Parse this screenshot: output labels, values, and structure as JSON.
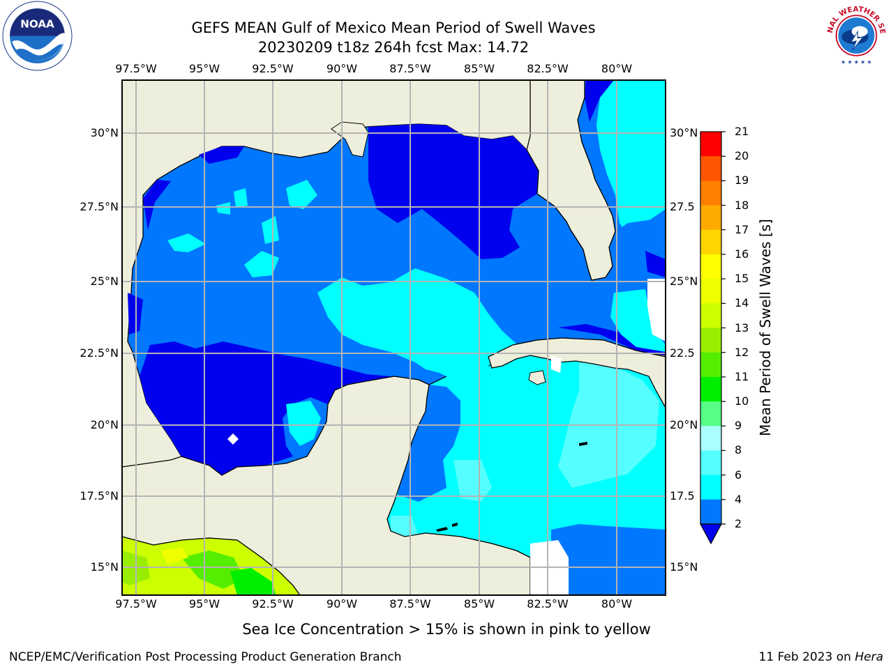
{
  "title": {
    "line1": "GEFS MEAN Gulf of Mexico Mean Period of Swell Waves",
    "line2": "20230209 t18z 264h fcst   Max: 14.72"
  },
  "logos": {
    "left": "noaa-logo",
    "right": "national-weather-service-logo",
    "left_text": "NOAA",
    "right_text": "NATIONAL WEATHER SERVICE"
  },
  "axes": {
    "lon_ticks": [
      "97.5°W",
      "95°W",
      "92.5°W",
      "90°W",
      "87.5°W",
      "85°W",
      "82.5°W",
      "80°W"
    ],
    "lat_ticks_left": [
      "30°N",
      "27.5°N",
      "25°N",
      "22.5°N",
      "20°N",
      "17.5°N",
      "15°N"
    ],
    "lat_ticks_right": [
      "30°N",
      "27.5",
      "25°N",
      "22.5",
      "20°N",
      "17.5",
      "15°N"
    ]
  },
  "colorbar": {
    "title": "Mean Period of Swell Waves [s]",
    "labels": [
      "21",
      "20",
      "19",
      "18",
      "17",
      "16",
      "15",
      "14",
      "13",
      "12",
      "11",
      "10",
      "9",
      "8",
      "6",
      "4",
      "2"
    ],
    "colors": [
      "#ff0000",
      "#ff2a00",
      "#ff5500",
      "#ff7f00",
      "#ffaa00",
      "#ffd400",
      "#ffff00",
      "#eeff00",
      "#ccff00",
      "#99ee00",
      "#55ee00",
      "#00ee00",
      "#55ff88",
      "#aaffff",
      "#55ffff",
      "#00ffff",
      "#0077ff",
      "#0000ee"
    ]
  },
  "map_colors": {
    "land": "#eeeedc",
    "ocean_dark": "#0000ee",
    "ocean_mid": "#0077ff",
    "ocean_light": "#00ffff",
    "ocean_lighter": "#55ffff",
    "grid": "#b4b4b4"
  },
  "notes": {
    "sea_ice": "Sea Ice Concentration > 15% is shown in pink to yellow",
    "footer_left": "NCEP/EMC/Verification Post Processing Product Generation Branch",
    "footer_date": "11 Feb 2023 on ",
    "footer_machine": "Hera"
  }
}
